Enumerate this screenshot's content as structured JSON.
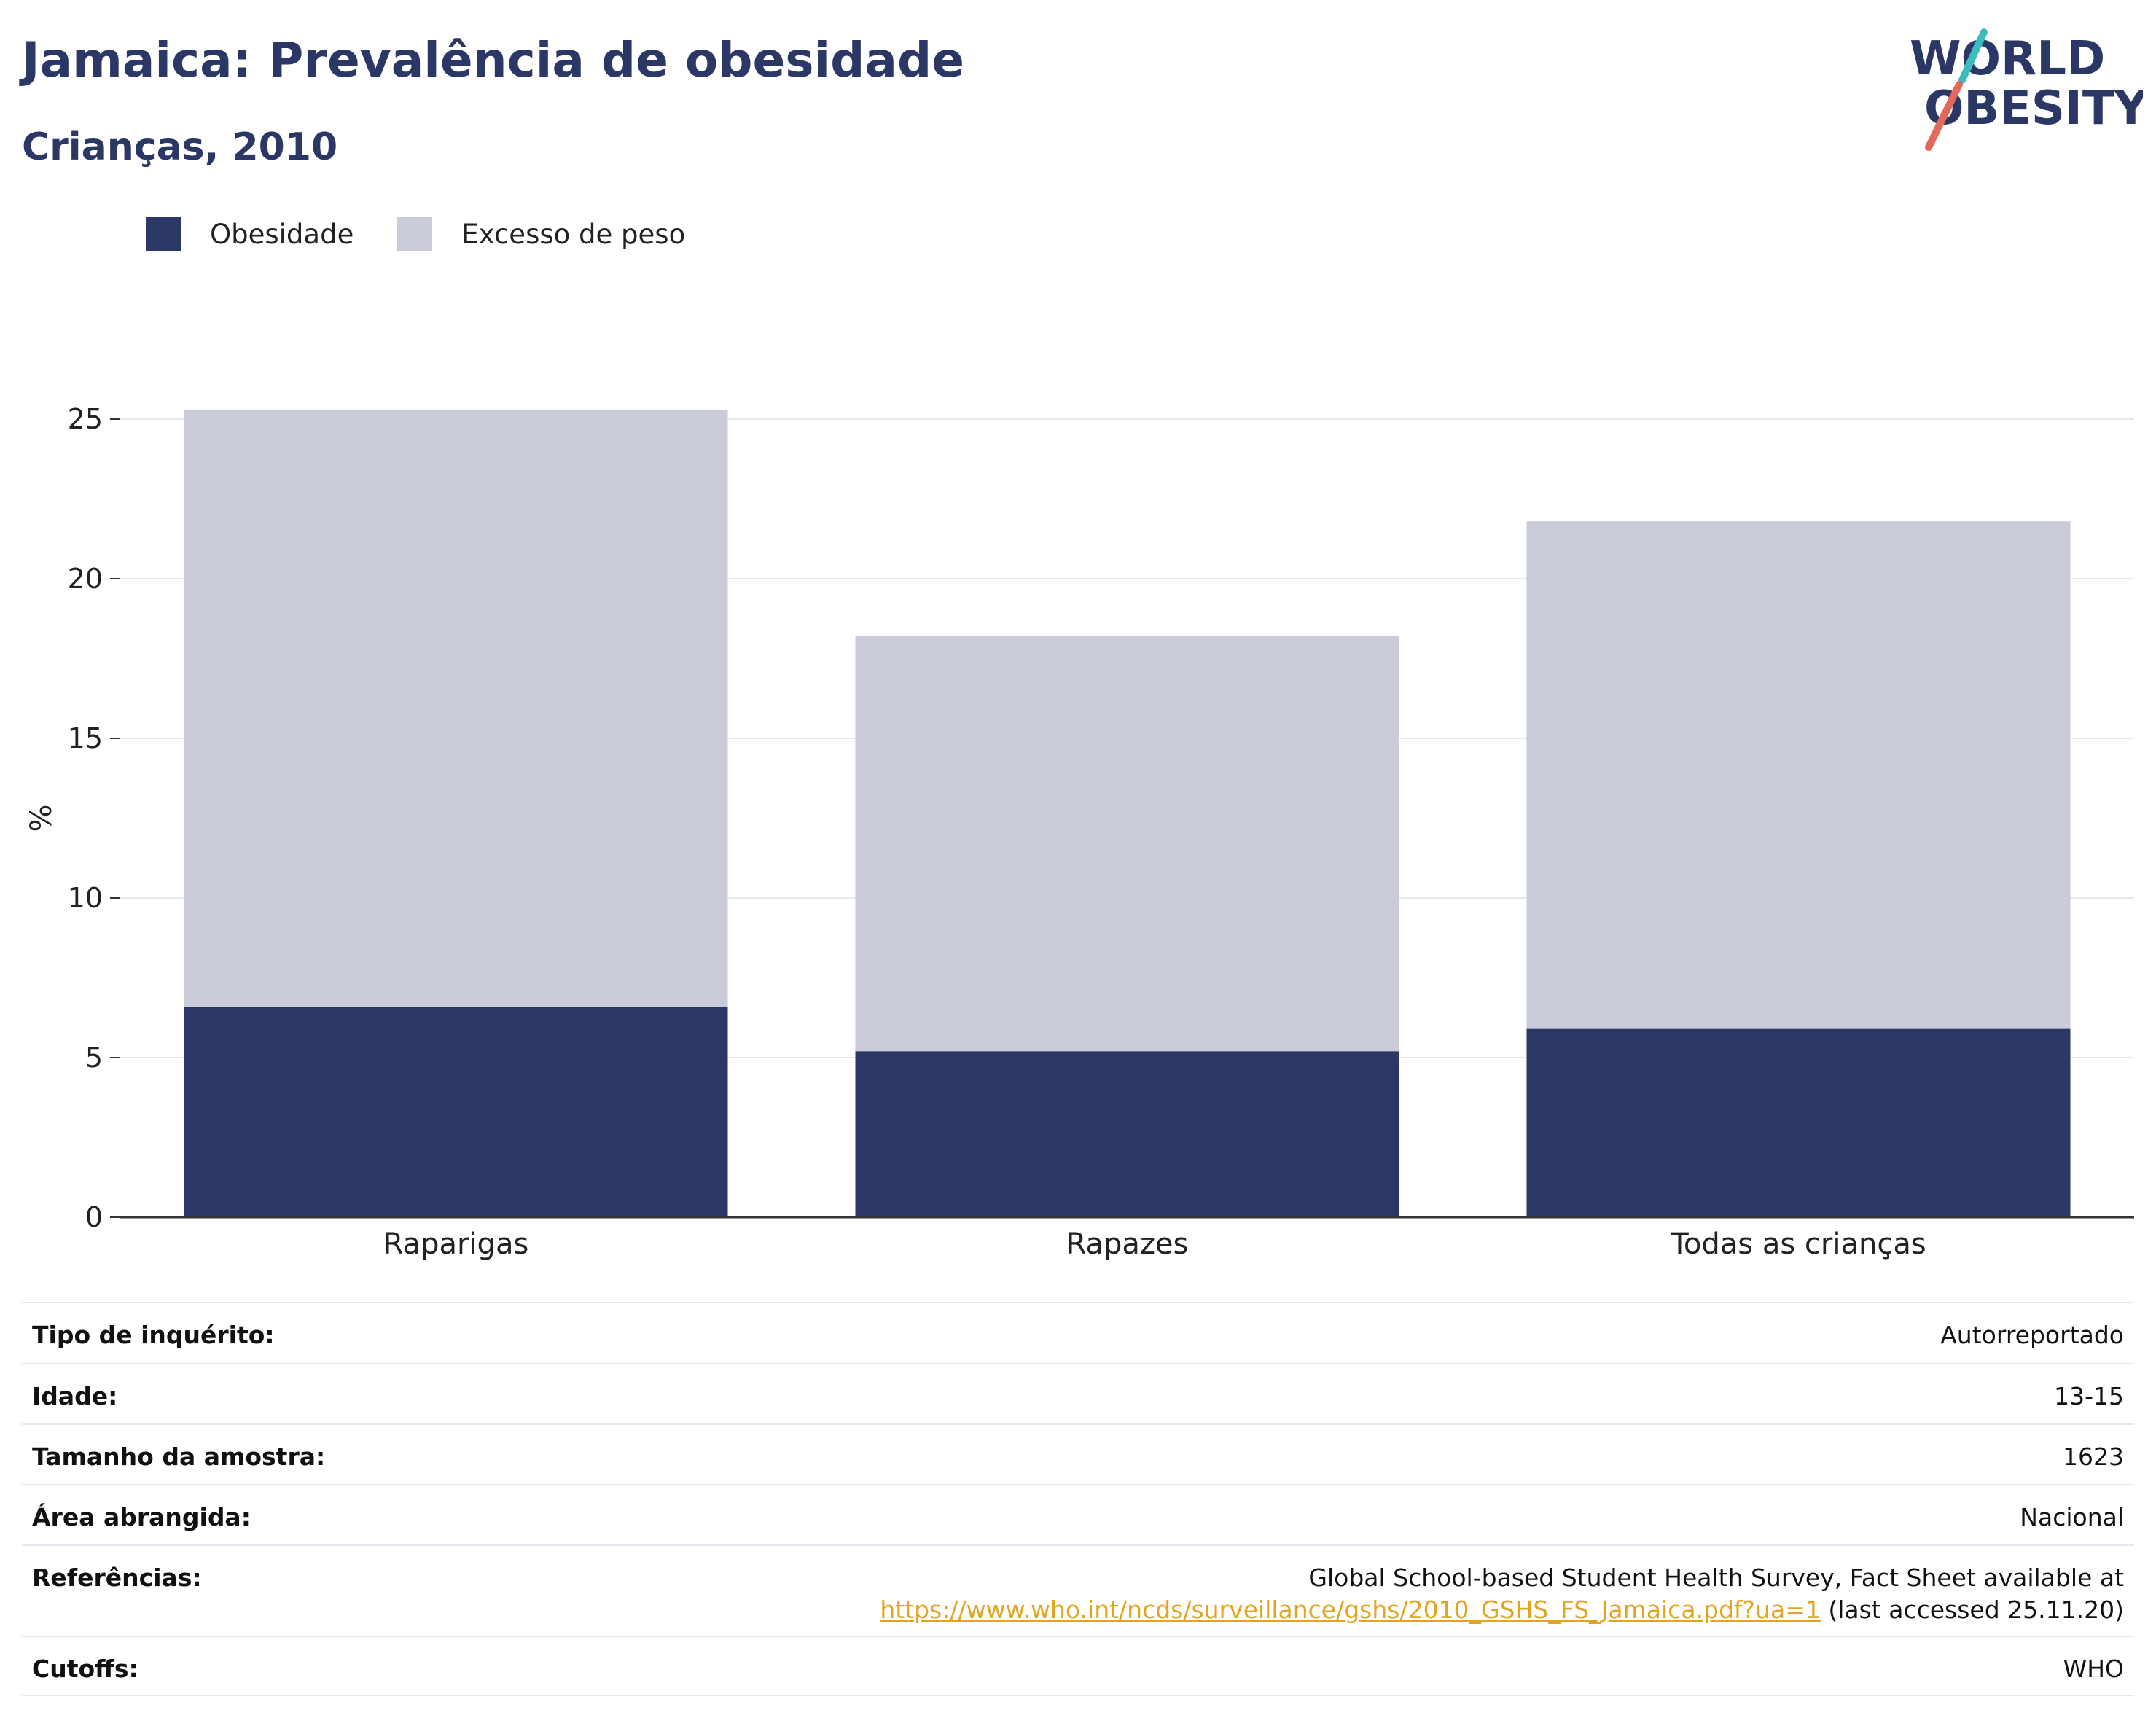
{
  "header": {
    "title": "Jamaica: Prevalência de obesidade",
    "subtitle": "Crianças, 2010"
  },
  "logo": {
    "line1": "WORLD",
    "line2": "OBESITY",
    "slash_colors": [
      "#3dbcc0",
      "#e4685b"
    ],
    "text_color": "#2b3764"
  },
  "legend": {
    "items": [
      {
        "label": "Obesidade",
        "color": "#2b3764"
      },
      {
        "label": "Excesso de peso",
        "color": "#c9ccd8"
      }
    ]
  },
  "chart_data": {
    "type": "bar",
    "stacked": true,
    "categories": [
      "Raparigas",
      "Rapazes",
      "Todas as crianças"
    ],
    "series": [
      {
        "name": "Obesidade",
        "values": [
          6.6,
          5.2,
          5.9
        ],
        "color": "#2b3764"
      },
      {
        "name": "Excesso de peso",
        "values": [
          18.7,
          13.0,
          15.9
        ],
        "color": "#c9ccd8"
      }
    ],
    "ylabel": "%",
    "ylim": [
      0,
      25
    ],
    "yticks": [
      0,
      5,
      10,
      15,
      20,
      25
    ],
    "grid": true,
    "legend_position": "top-left"
  },
  "meta": {
    "rows": [
      {
        "key": "Tipo de inquérito:",
        "value": "Autorreportado"
      },
      {
        "key": "Idade:",
        "value": "13-15"
      },
      {
        "key": "Tamanho da amostra:",
        "value": "1623"
      },
      {
        "key": "Área abrangida:",
        "value": "Nacional"
      },
      {
        "key": "Cutoffs:",
        "value": "WHO"
      }
    ],
    "references": {
      "key": "Referências:",
      "line1": "Global School-based Student Health Survey, Fact Sheet available at",
      "link": "https://www.who.int/ncds/surveillance/gshs/2010_GSHS_FS_Jamaica.pdf?ua=1",
      "suffix": " (last accessed 25.11.20)"
    }
  }
}
